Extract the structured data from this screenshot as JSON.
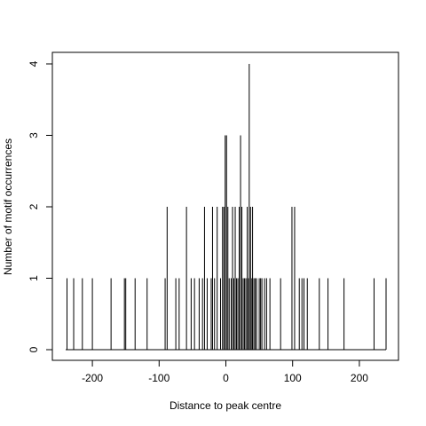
{
  "chart_data": {
    "type": "line",
    "title": "",
    "xlabel": "Distance to peak centre",
    "ylabel": "Number of motif occurrences",
    "xlim": [
      -250,
      250
    ],
    "ylim": [
      0,
      4
    ],
    "x_ticks": [
      -200,
      -100,
      0,
      100,
      200
    ],
    "x_tick_labels": [
      "-200",
      "-100",
      "0",
      "100",
      "200"
    ],
    "y_ticks": [
      0,
      1,
      2,
      3,
      4
    ],
    "y_tick_labels": [
      "0",
      "1",
      "2",
      "3",
      "4"
    ],
    "grid": false,
    "line_color": "#000000",
    "series": [
      {
        "spikes": [
          [
            -238,
            1
          ],
          [
            -228,
            1
          ],
          [
            -215,
            1
          ],
          [
            -200,
            1
          ],
          [
            -172,
            1
          ],
          [
            -152,
            1
          ],
          [
            -150,
            1
          ],
          [
            -136,
            1
          ],
          [
            -118,
            1
          ],
          [
            -91,
            1
          ],
          [
            -88,
            2
          ],
          [
            -75,
            1
          ],
          [
            -70,
            1
          ],
          [
            -59,
            2
          ],
          [
            -52,
            1
          ],
          [
            -47,
            1
          ],
          [
            -40,
            1
          ],
          [
            -35,
            1
          ],
          [
            -32,
            2
          ],
          [
            -28,
            1
          ],
          [
            -22,
            1
          ],
          [
            -20,
            2
          ],
          [
            -17,
            1
          ],
          [
            -13,
            2
          ],
          [
            -8,
            1
          ],
          [
            -5,
            2
          ],
          [
            -3,
            2
          ],
          [
            -1,
            3
          ],
          [
            1,
            3
          ],
          [
            3,
            2
          ],
          [
            5,
            1
          ],
          [
            8,
            1
          ],
          [
            10,
            2
          ],
          [
            12,
            1
          ],
          [
            14,
            2
          ],
          [
            16,
            1
          ],
          [
            18,
            1
          ],
          [
            20,
            2
          ],
          [
            22,
            3
          ],
          [
            24,
            2
          ],
          [
            26,
            1
          ],
          [
            28,
            1
          ],
          [
            30,
            1
          ],
          [
            32,
            2
          ],
          [
            34,
            1
          ],
          [
            35,
            4
          ],
          [
            37,
            2
          ],
          [
            39,
            1
          ],
          [
            40,
            2
          ],
          [
            42,
            1
          ],
          [
            44,
            1
          ],
          [
            46,
            1
          ],
          [
            50,
            1
          ],
          [
            52,
            1
          ],
          [
            54,
            1
          ],
          [
            58,
            1
          ],
          [
            61,
            1
          ],
          [
            66,
            1
          ],
          [
            82,
            1
          ],
          [
            99,
            2
          ],
          [
            103,
            2
          ],
          [
            110,
            1
          ],
          [
            114,
            1
          ],
          [
            117,
            1
          ],
          [
            122,
            1
          ],
          [
            140,
            1
          ],
          [
            153,
            1
          ],
          [
            177,
            1
          ],
          [
            222,
            1
          ],
          [
            240,
            1
          ]
        ]
      }
    ]
  }
}
